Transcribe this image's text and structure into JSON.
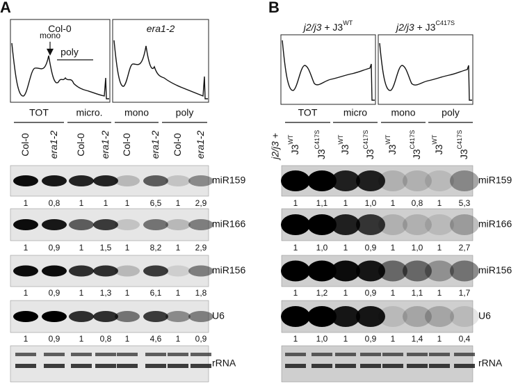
{
  "panel_a": {
    "label": "A",
    "profile_titles": [
      {
        "text": "Col-0"
      },
      {
        "italic": "era1-2"
      }
    ],
    "profile_annotations": [
      "mono",
      "poly"
    ],
    "groups": [
      "TOT",
      "micro.",
      "mono",
      "poly"
    ],
    "lanes": [
      {
        "text": "Col-0"
      },
      {
        "italic": "era1-2"
      },
      {
        "text": "Col-0"
      },
      {
        "italic": "era1-2"
      },
      {
        "text": "Col-0"
      },
      {
        "italic": "era1-2"
      },
      {
        "text": "Col-0"
      },
      {
        "italic": "era1-2"
      }
    ],
    "blots": [
      {
        "name": "miR159",
        "quant": [
          "1",
          "0,8",
          "1",
          "1",
          "1",
          "6,5",
          "1",
          "2,9"
        ]
      },
      {
        "name": "miR166",
        "quant": [
          "1",
          "0,9",
          "1",
          "1,5",
          "1",
          "8,2",
          "1",
          "2,9"
        ]
      },
      {
        "name": "miR156",
        "quant": [
          "1",
          "0,9",
          "1",
          "1,3",
          "1",
          "6,1",
          "1",
          "1,8"
        ]
      },
      {
        "name": "U6",
        "quant": [
          "1",
          "0,9",
          "1",
          "0,8",
          "1",
          "4,6",
          "1",
          "0,9"
        ]
      },
      {
        "name": "rRNA"
      }
    ]
  },
  "panel_b": {
    "label": "B",
    "profile_titles": [
      {
        "italic": "j2/j3",
        "text": " + J3",
        "sup": "WT"
      },
      {
        "italic": "j2/j3",
        "text": " + J3",
        "sup": "C417S"
      }
    ],
    "groups": [
      "TOT",
      "micro",
      "mono",
      "poly"
    ],
    "lane_prefix": "j2/j3 +",
    "lanes": [
      {
        "text": "J3",
        "sup": "WT"
      },
      {
        "text": "J3",
        "sup": "C417S"
      },
      {
        "text": "J3",
        "sup": "WT"
      },
      {
        "text": "J3",
        "sup": "C417S"
      },
      {
        "text": "J3",
        "sup": "WT"
      },
      {
        "text": "J3",
        "sup": "C417S"
      },
      {
        "text": "J3",
        "sup": "WT"
      },
      {
        "text": "J3",
        "sup": "C417S"
      }
    ],
    "blots": [
      {
        "name": "miR159",
        "quant": [
          "1",
          "1,1",
          "1",
          "1,0",
          "1",
          "0,8",
          "1",
          "5,3"
        ]
      },
      {
        "name": "miR166",
        "quant": [
          "1",
          "1,0",
          "1",
          "0,9",
          "1",
          "1,0",
          "1",
          "2,7"
        ]
      },
      {
        "name": "miR156",
        "quant": [
          "1",
          "1,2",
          "1",
          "0,9",
          "1",
          "1,1",
          "1",
          "1,7"
        ]
      },
      {
        "name": "U6",
        "quant": [
          "1",
          "1,0",
          "1",
          "0,9",
          "1",
          "1,4",
          "1",
          "0,4"
        ]
      },
      {
        "name": "rRNA"
      }
    ]
  }
}
